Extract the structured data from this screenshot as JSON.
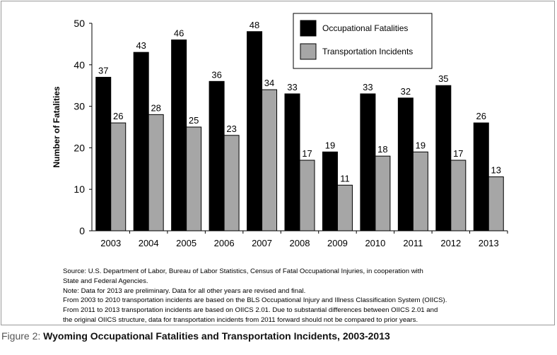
{
  "chart_data": {
    "type": "bar",
    "title": "",
    "xlabel": "",
    "ylabel": "Number of Fatalities",
    "ylim": [
      0,
      50
    ],
    "yticks": [
      0,
      10,
      20,
      30,
      40,
      50
    ],
    "grid": false,
    "legend_position": "top-right",
    "categories": [
      "2003",
      "2004",
      "2005",
      "2006",
      "2007",
      "2008",
      "2009",
      "2010",
      "2011",
      "2012",
      "2013"
    ],
    "series": [
      {
        "name": "Occupational Fatalities",
        "color": "#000000",
        "values": [
          37,
          43,
          46,
          36,
          48,
          33,
          19,
          33,
          32,
          35,
          26
        ]
      },
      {
        "name": "Transportation Incidents",
        "color": "#a6a6a6",
        "values": [
          26,
          28,
          25,
          23,
          34,
          17,
          11,
          18,
          19,
          17,
          13
        ]
      }
    ]
  },
  "notes": [
    "Source: U.S. Department of Labor, Bureau of Labor Statistics, Census of Fatal Occupational Injuries, in cooperation with",
    "State and Federal Agencies.",
    "Note: Data for 2013 are preliminary. Data for all other years are revised and final.",
    "From 2003 to 2010 transportation incidents are based on the BLS Occupational Injury and Illness Classification System (OIICS).",
    "From 2011 to 2013 transportation incidents are based on OIICS 2.01. Due to substantial differences between OIICS 2.01 and",
    "the original OIICS structure, data for transportation incidents from 2011 forward should not be compared to prior years."
  ],
  "caption": {
    "figure_label": "Figure 2:",
    "title": "Wyoming Occupational Fatalities and Transportation Incidents, 2003-2013"
  }
}
